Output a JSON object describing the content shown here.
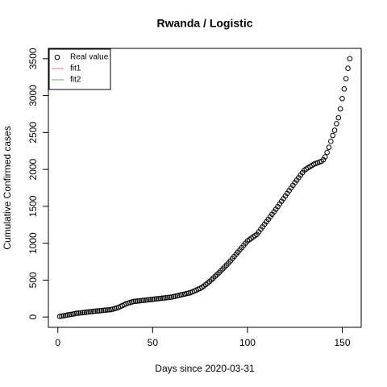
{
  "chart_data": {
    "type": "scatter",
    "title": "Rwanda / Logistic",
    "xlabel": "Days since 2020-03-31",
    "ylabel": "Cumulative Confirmed cases",
    "xlim": [
      -5,
      160
    ],
    "ylim": [
      -140,
      3640
    ],
    "xticks": [
      0,
      50,
      100,
      150
    ],
    "yticks": [
      0,
      500,
      1000,
      1500,
      2000,
      2500,
      3000,
      3500
    ],
    "legend_position": "top-left",
    "legend": [
      {
        "label": "Real value",
        "kind": "point",
        "color": "#000000"
      },
      {
        "label": "fit1",
        "kind": "line",
        "color": "#e377a0"
      },
      {
        "label": "fit2",
        "kind": "line",
        "color": "#5cb85c"
      }
    ],
    "series": [
      {
        "name": "Real value",
        "color": "#000000",
        "x": [
          1,
          2,
          3,
          4,
          5,
          6,
          7,
          8,
          9,
          10,
          11,
          12,
          13,
          14,
          15,
          16,
          17,
          18,
          19,
          20,
          21,
          22,
          23,
          24,
          25,
          26,
          27,
          28,
          29,
          30,
          31,
          32,
          33,
          34,
          35,
          36,
          37,
          38,
          39,
          40,
          41,
          42,
          43,
          44,
          45,
          46,
          47,
          48,
          49,
          50,
          51,
          52,
          53,
          54,
          55,
          56,
          57,
          58,
          59,
          60,
          61,
          62,
          63,
          64,
          65,
          66,
          67,
          68,
          69,
          70,
          71,
          72,
          73,
          74,
          75,
          76,
          77,
          78,
          79,
          80,
          81,
          82,
          83,
          84,
          85,
          86,
          87,
          88,
          89,
          90,
          91,
          92,
          93,
          94,
          95,
          96,
          97,
          98,
          99,
          100,
          101,
          102,
          103,
          104,
          105,
          106,
          107,
          108,
          109,
          110,
          111,
          112,
          113,
          114,
          115,
          116,
          117,
          118,
          119,
          120,
          121,
          122,
          123,
          124,
          125,
          126,
          127,
          128,
          129,
          130,
          131,
          132,
          133,
          134,
          135,
          136,
          137,
          138,
          139,
          140,
          141,
          142,
          143,
          144,
          145,
          146,
          147,
          148,
          149,
          150,
          151,
          152,
          153,
          154
        ],
        "values": [
          8,
          13,
          17,
          22,
          27,
          31,
          36,
          40,
          45,
          50,
          53,
          56,
          59,
          62,
          65,
          68,
          71,
          74,
          77,
          80,
          82,
          85,
          88,
          90,
          93,
          95,
          98,
          100,
          107,
          115,
          122,
          130,
          142,
          155,
          167,
          180,
          188,
          195,
          203,
          210,
          213,
          216,
          219,
          222,
          225,
          228,
          231,
          234,
          237,
          240,
          243,
          246,
          249,
          252,
          255,
          258,
          261,
          264,
          267,
          270,
          276,
          282,
          288,
          294,
          300,
          306,
          312,
          318,
          324,
          330,
          342,
          353,
          365,
          377,
          388,
          400,
          420,
          440,
          460,
          480,
          504,
          528,
          552,
          576,
          600,
          626,
          652,
          678,
          704,
          730,
          760,
          790,
          820,
          850,
          880,
          910,
          940,
          970,
          1000,
          1030,
          1048,
          1066,
          1084,
          1102,
          1120,
          1154,
          1188,
          1222,
          1256,
          1290,
          1324,
          1358,
          1392,
          1426,
          1460,
          1496,
          1532,
          1568,
          1604,
          1640,
          1676,
          1712,
          1748,
          1784,
          1820,
          1854,
          1888,
          1922,
          1956,
          1990,
          2006,
          2022,
          2038,
          2054,
          2070,
          2080,
          2090,
          2100,
          2110,
          2130,
          2170,
          2230,
          2300,
          2380,
          2460,
          2530,
          2620,
          2700,
          2820,
          2960,
          3090,
          3230,
          3370,
          3500
        ]
      }
    ]
  }
}
